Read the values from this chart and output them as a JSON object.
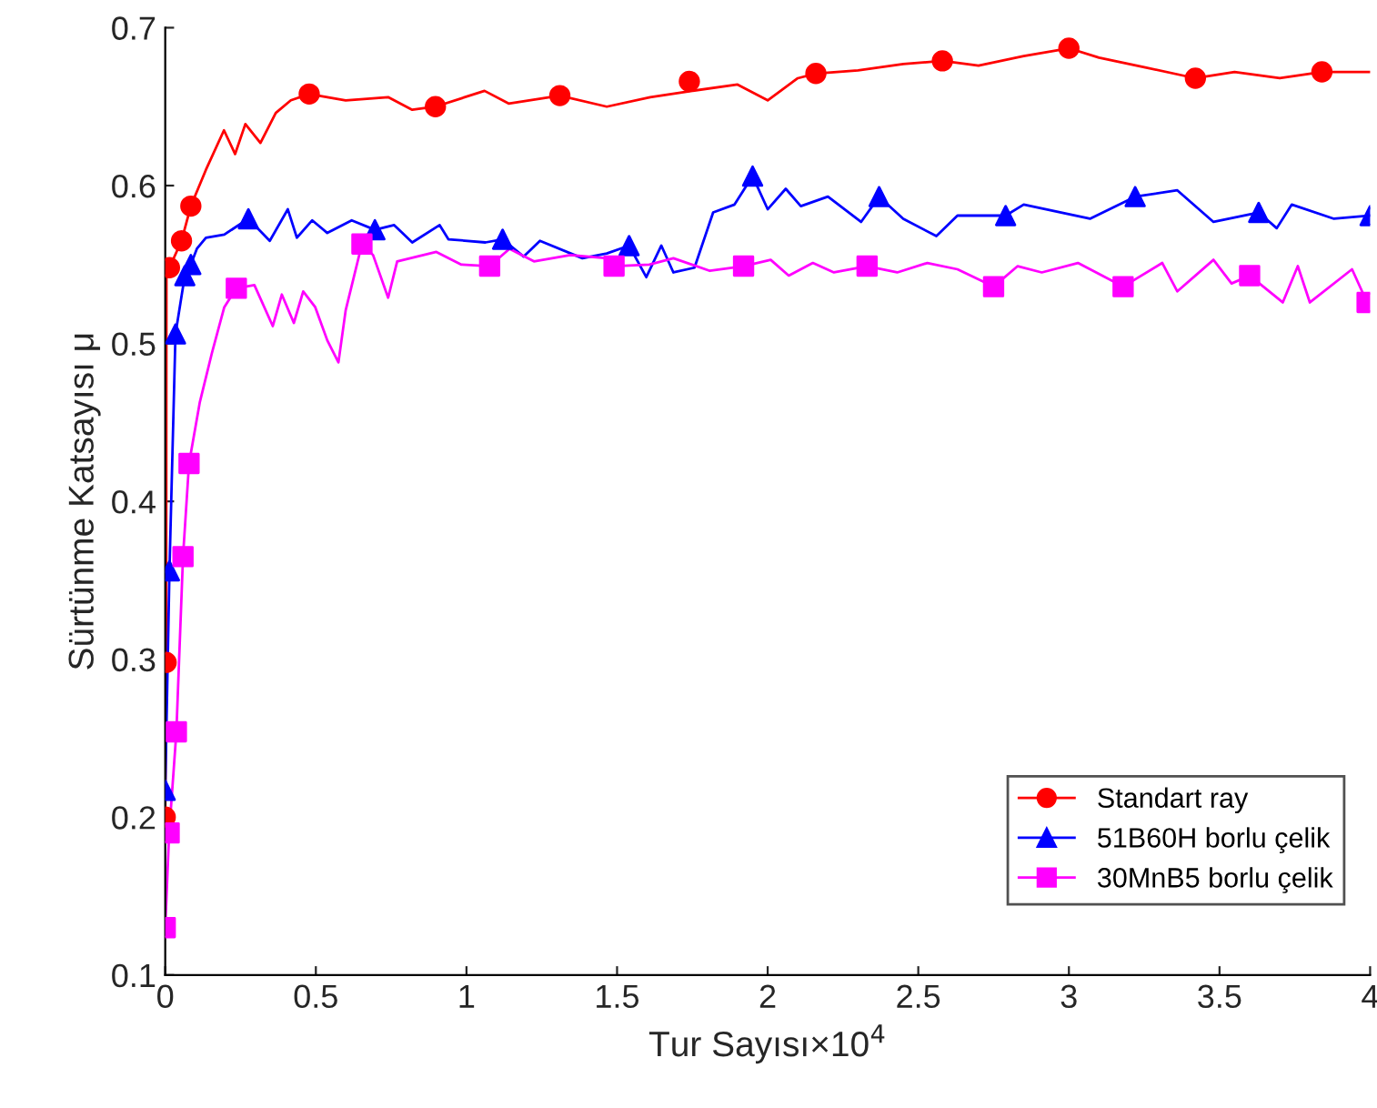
{
  "chart_data": {
    "type": "line",
    "xlabel": "Tur Sayısı×10$^{4}$",
    "ylabel": "Sürtünme Katsayısı μ",
    "xlim": [
      0,
      4
    ],
    "ylim": [
      0.1,
      0.7
    ],
    "xticks": [
      0,
      0.5,
      1,
      1.5,
      2,
      2.5,
      3,
      3.5,
      4
    ],
    "yticks": [
      0.1,
      0.2,
      0.3,
      0.4,
      0.5,
      0.6,
      0.7
    ],
    "grid": false,
    "legend": "bottom right",
    "series": [
      {
        "name": "Standart ray",
        "color": "#ff0000",
        "x": [
          0,
          0.003,
          0.004,
          0.014,
          0.054,
          0.085,
          0.135,
          0.195,
          0.232,
          0.266,
          0.316,
          0.367,
          0.417,
          0.478,
          0.599,
          0.74,
          0.82,
          0.897,
          1.06,
          1.14,
          1.31,
          1.466,
          1.61,
          1.75,
          1.9,
          2.0,
          2.1,
          2.16,
          2.3,
          2.45,
          2.58,
          2.7,
          2.85,
          3.0,
          3.1,
          3.25,
          3.42,
          3.55,
          3.7,
          3.84,
          4.0
        ],
        "values": [
          0.2,
          0.298,
          0.548,
          0.548,
          0.565,
          0.587,
          0.61,
          0.635,
          0.62,
          0.639,
          0.627,
          0.646,
          0.654,
          0.658,
          0.654,
          0.656,
          0.648,
          0.65,
          0.66,
          0.652,
          0.657,
          0.65,
          0.656,
          0.66,
          0.664,
          0.654,
          0.668,
          0.671,
          0.673,
          0.677,
          0.679,
          0.676,
          0.682,
          0.687,
          0.681,
          0.675,
          0.668,
          0.672,
          0.668,
          0.672,
          0.672
        ]
      },
      {
        "type": "scatter",
        "color": "#ff0000",
        "marker": "circle",
        "x": [
          0,
          0.003,
          0.004,
          0.014,
          0.054,
          0.085,
          0.478,
          0.897,
          1.31,
          1.74,
          2.16,
          2.58,
          3.0,
          3.42,
          3.84
        ],
        "values": [
          0.2,
          0.298,
          null,
          0.548,
          0.565,
          0.587,
          0.658,
          0.65,
          0.657,
          0.666,
          0.671,
          0.679,
          0.687,
          0.668,
          0.672
        ]
      },
      {
        "name": "51B60H borlu çelik",
        "color": "#0000ff",
        "x": [
          0,
          0.014,
          0.034,
          0.065,
          0.085,
          0.105,
          0.135,
          0.196,
          0.276,
          0.347,
          0.407,
          0.437,
          0.488,
          0.538,
          0.619,
          0.696,
          0.76,
          0.82,
          0.911,
          0.94,
          1.063,
          1.12,
          1.19,
          1.244,
          1.385,
          1.466,
          1.54,
          1.597,
          1.647,
          1.687,
          1.757,
          1.819,
          1.89,
          1.95,
          2.0,
          2.06,
          2.11,
          2.2,
          2.31,
          2.37,
          2.45,
          2.56,
          2.63,
          2.79,
          2.85,
          3.07,
          3.22,
          3.36,
          3.48,
          3.63,
          3.69,
          3.74,
          3.88,
          4.0
        ],
        "values": [
          0.217,
          0.356,
          0.506,
          0.543,
          0.55,
          0.56,
          0.567,
          0.569,
          0.579,
          0.565,
          0.585,
          0.567,
          0.578,
          0.57,
          0.578,
          0.572,
          0.575,
          0.564,
          0.575,
          0.566,
          0.564,
          0.566,
          0.555,
          0.565,
          0.554,
          0.557,
          0.562,
          0.542,
          0.562,
          0.545,
          0.548,
          0.583,
          0.588,
          0.606,
          0.585,
          0.598,
          0.587,
          0.593,
          0.577,
          0.593,
          0.579,
          0.568,
          0.581,
          0.581,
          0.588,
          0.579,
          0.593,
          0.597,
          0.577,
          0.583,
          0.573,
          0.588,
          0.579,
          0.581
        ]
      },
      {
        "type": "scatter",
        "color": "#0000ff",
        "marker": "triangle",
        "x": [
          0,
          0.014,
          0.034,
          0.065,
          0.085,
          0.276,
          0.696,
          1.12,
          1.54,
          1.95,
          2.37,
          2.79,
          3.22,
          3.63,
          4.0
        ],
        "values": [
          0.217,
          0.356,
          0.506,
          0.543,
          0.55,
          0.579,
          0.572,
          0.566,
          0.562,
          0.606,
          0.593,
          0.581,
          0.593,
          0.583,
          0.581
        ]
      },
      {
        "name": "30MnB5 borlu çelik",
        "color": "#ff00ff",
        "x": [
          0,
          0.013,
          0.037,
          0.059,
          0.079,
          0.115,
          0.155,
          0.196,
          0.236,
          0.296,
          0.357,
          0.387,
          0.427,
          0.458,
          0.498,
          0.538,
          0.575,
          0.599,
          0.653,
          0.69,
          0.74,
          0.77,
          0.9,
          0.982,
          1.077,
          1.143,
          1.224,
          1.345,
          1.466,
          1.49,
          1.607,
          1.687,
          1.808,
          1.92,
          2.01,
          2.07,
          2.15,
          2.22,
          2.33,
          2.43,
          2.53,
          2.63,
          2.75,
          2.83,
          2.91,
          3.03,
          3.18,
          3.31,
          3.36,
          3.48,
          3.54,
          3.6,
          3.71,
          3.76,
          3.8,
          3.94,
          3.99
        ],
        "values": [
          0.13,
          0.19,
          0.254,
          0.365,
          0.424,
          0.463,
          0.494,
          0.523,
          0.535,
          0.537,
          0.511,
          0.531,
          0.513,
          0.533,
          0.523,
          0.502,
          0.488,
          0.521,
          0.563,
          0.556,
          0.529,
          0.552,
          0.558,
          0.55,
          0.549,
          0.56,
          0.552,
          0.556,
          0.554,
          0.549,
          0.55,
          0.554,
          0.546,
          0.549,
          0.553,
          0.543,
          0.551,
          0.545,
          0.549,
          0.545,
          0.551,
          0.547,
          0.536,
          0.549,
          0.545,
          0.551,
          0.536,
          0.551,
          0.533,
          0.553,
          0.538,
          0.543,
          0.526,
          0.549,
          0.526,
          0.547,
          0.526
        ]
      },
      {
        "type": "scatter",
        "color": "#ff00ff",
        "marker": "square",
        "x": [
          0,
          0.013,
          0.037,
          0.059,
          0.079,
          0.236,
          0.653,
          1.077,
          1.49,
          1.92,
          2.33,
          2.75,
          3.18,
          3.6,
          3.99
        ],
        "values": [
          0.13,
          0.19,
          0.254,
          0.365,
          0.424,
          0.535,
          0.563,
          0.549,
          0.549,
          0.549,
          0.549,
          0.536,
          0.536,
          0.543,
          0.526
        ]
      }
    ]
  }
}
